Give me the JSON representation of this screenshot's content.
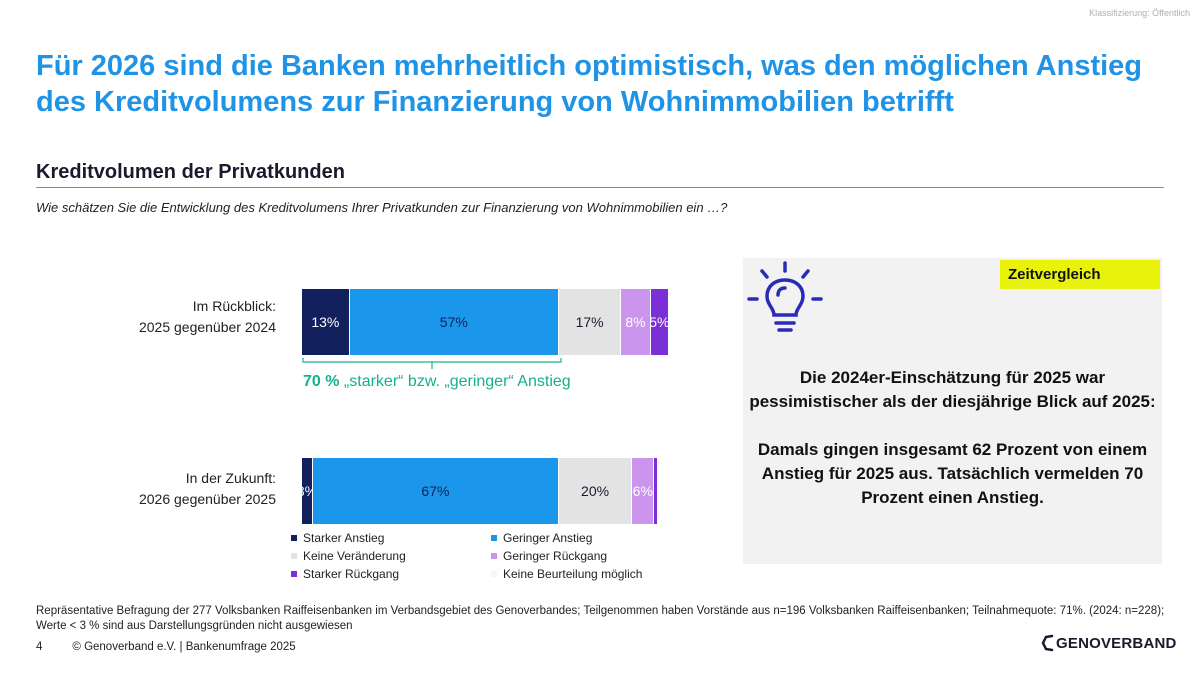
{
  "classification": "Klassifizierung: Öffentlich",
  "title": "Für 2026 sind die Banken mehrheitlich optimistisch, was den möglichen Anstieg des Kreditvolumens zur Finanzierung von Wohnimmobilien betrifft",
  "subtitle": "Kreditvolumen der Privatkunden",
  "question": "Wie schätzen Sie die Entwicklung des Kreditvolumens Ihrer Privatkunden zur Finanzierung von Wohnimmobilien ein …?",
  "colors": {
    "dark_navy": "#12205e",
    "blue": "#1a96ea",
    "light_gray": "#e3e3e3",
    "lavender": "#cb95ee",
    "purple": "#7b2fd6",
    "none": "#f5f5f5",
    "title_blue": "#1f93e6",
    "teal": "#17b08c",
    "highlight": "#e8f20a"
  },
  "chart_data": {
    "type": "bar",
    "orientation": "horizontal",
    "stacked": true,
    "categories": [
      "Im Rückblick: 2025 gegenüber 2024",
      "In der Zukunft: 2026 gegenüber 2025"
    ],
    "category_lines": [
      [
        "Im Rückblick:",
        "2025 gegenüber 2024"
      ],
      [
        "In der Zukunft:",
        "2026 gegenüber 2025"
      ]
    ],
    "series": [
      {
        "name": "Starker Anstieg",
        "values": [
          13,
          3
        ],
        "labels": [
          "13%",
          "3%"
        ],
        "color": "#12205e",
        "text_color": "#ffffff"
      },
      {
        "name": "Geringer Anstieg",
        "values": [
          57,
          67
        ],
        "labels": [
          "57%",
          "67%"
        ],
        "color": "#1a96ea",
        "text_color": "#12205e"
      },
      {
        "name": "Keine Veränderung",
        "values": [
          17,
          20
        ],
        "labels": [
          "17%",
          "20%"
        ],
        "color": "#e3e3e3",
        "text_color": "#1a1a2e"
      },
      {
        "name": "Geringer Rückgang",
        "values": [
          8,
          6
        ],
        "labels": [
          "8%",
          "6%"
        ],
        "color": "#cb95ee",
        "text_color": "#ffffff"
      },
      {
        "name": "Starker Rückgang",
        "values": [
          5,
          1
        ],
        "labels": [
          "5%",
          ""
        ],
        "color": "#7b2fd6",
        "text_color": "#ffffff"
      },
      {
        "name": "Keine Beurteilung möglich",
        "values": [
          0,
          0
        ],
        "labels": [
          "",
          ""
        ],
        "color": "#f5f5f5",
        "text_color": "#1a1a2e"
      }
    ],
    "annotation": {
      "bold": "70 %",
      "text": " „starker“ bzw. „geringer“ Anstieg"
    },
    "legend_position": "bottom"
  },
  "panel": {
    "tag": "Zeitvergleich",
    "p1": "Die 2024er-Einschätzung für 2025 war pessimistischer als der diesjährige Blick auf 2025:",
    "p2": "Damals gingen insgesamt 62 Prozent von einem Anstieg für 2025 aus. Tatsächlich vermelden 70 Prozent einen Anstieg."
  },
  "footnote": "Repräsentative Befragung der 277 Volksbanken Raiffeisenbanken im Verbandsgebiet des Genoverbandes; Teilgenommen haben Vorstände aus n=196 Volksbanken Raiffeisenbanken; Teilnahmequote: 71%. (2024: n=228); Werte < 3 % sind aus Darstellungsgründen nicht ausgewiesen",
  "footer": {
    "page": "4",
    "copyright": "© Genoverband e.V. | Bankenumfrage 2025",
    "logo": "GENOVERBAND"
  }
}
